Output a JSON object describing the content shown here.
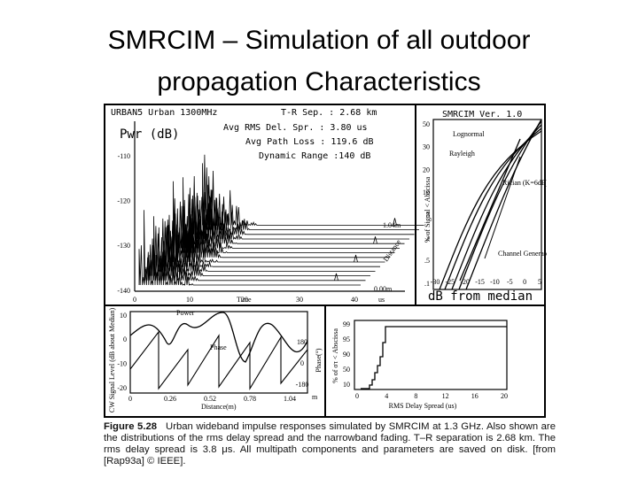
{
  "title": [
    "SMRCIM – Simulation of all outdoor",
    "propagation Characteristics"
  ],
  "figure": {
    "impulse_panel": {
      "header": "URBAN5 Urban 1300MHz",
      "stats": [
        "T-R Sep. : 2.68 km",
        "Avg RMS Del. Spr. : 3.80 us",
        "Avg Path Loss : 119.6 dB",
        "Dynamic Range :140 dB"
      ],
      "y_label": "Pwr (dB)",
      "y_ticks": [
        "-110",
        "-120",
        "-130",
        "-140"
      ],
      "x_ticks": [
        "0",
        "10",
        "20",
        "30",
        "40"
      ],
      "x_label": "Time",
      "x_unit": "us",
      "depth_labels": [
        "1.04m",
        "0.00m"
      ],
      "depth_axis": "Distance"
    },
    "fading_panel": {
      "header": "SMRCIM Ver. 1.0",
      "y_label": "% of Signal < Abscissa",
      "y_ticks": [
        "50",
        "30",
        "20",
        "10",
        "5",
        "2",
        ".5",
        ".1"
      ],
      "curve_labels": [
        "Lognormal",
        "Rayleigh",
        "Rician (K=6dB)",
        "Channel Generated"
      ],
      "x_ticks": [
        "-30",
        "-25",
        "-20",
        "-15",
        "-10",
        "-5",
        "0",
        "5"
      ],
      "x_label": "dB from median"
    },
    "cw_panel": {
      "y_label": "CW Signal Level (dB about Median)",
      "y_ticks": [
        "10",
        "0",
        "-10",
        "-20"
      ],
      "curve_labels": [
        "Power",
        "Phase"
      ],
      "phase_ticks": [
        "180",
        "0",
        "-180"
      ],
      "phase_label": "Phase(°)",
      "x_ticks": [
        "0",
        "0.26",
        "0.52",
        "0.78",
        "1.04"
      ],
      "x_unit": "m",
      "x_label": "Distance(m)"
    },
    "delay_panel": {
      "y_label": "% of στ < Abscissa",
      "y_ticks": [
        "99",
        "95",
        "90",
        "50",
        "10"
      ],
      "x_ticks": [
        "0",
        "4",
        "8",
        "12",
        "16",
        "20"
      ],
      "x_label": "RMS Delay Spread (us)"
    }
  },
  "caption": {
    "label": "Figure 5.28",
    "text": "Urban wideband impulse responses simulated by SMRCIM at 1.3 GHz. Also shown are the distributions of the rms delay spread and the narrowband fading. T–R separation is 2.68 km. The rms delay spread is 3.8 μs. All multipath components and parameters are saved on disk. [from [Rap93a] © IEEE]."
  }
}
